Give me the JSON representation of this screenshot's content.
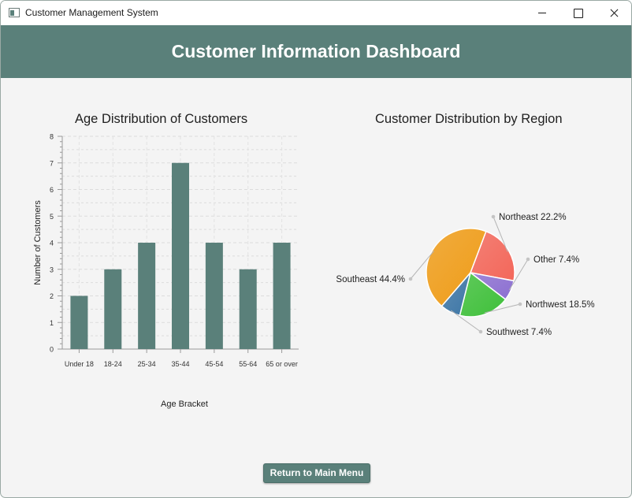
{
  "window": {
    "title": "Customer Management System"
  },
  "header": {
    "title": "Customer Information Dashboard"
  },
  "footer": {
    "return_button_label": "Return to Main Menu"
  },
  "colors": {
    "accent": "#5a807a",
    "background": "#f4f4f4",
    "pie_northeast": "#f3675a",
    "pie_other": "#8c6fd1",
    "pie_northwest": "#3fc03a",
    "pie_southwest": "#3d76a6",
    "pie_southeast": "#ef9c17"
  },
  "chart_data": [
    {
      "type": "bar",
      "title": "Age Distribution of Customers",
      "xlabel": "Age Bracket",
      "ylabel": "Number of Customers",
      "categories": [
        "Under 18",
        "18-24",
        "25-34",
        "35-44",
        "45-54",
        "55-64",
        "65 or over"
      ],
      "values": [
        2,
        3,
        4,
        7,
        4,
        3,
        4
      ],
      "ylim": [
        0,
        8
      ],
      "yticks": [
        "0",
        "1",
        "2",
        "3",
        "4",
        "5",
        "6",
        "7",
        "8"
      ],
      "grid": true
    },
    {
      "type": "pie",
      "title": "Customer Distribution by Region",
      "slices": [
        {
          "name": "Northeast",
          "value": 22.2,
          "label": "Northeast 22.2%"
        },
        {
          "name": "Other",
          "value": 7.4,
          "label": "Other 7.4%"
        },
        {
          "name": "Northwest",
          "value": 18.5,
          "label": "Northwest 18.5%"
        },
        {
          "name": "Southwest",
          "value": 7.4,
          "label": "Southwest 7.4%"
        },
        {
          "name": "Southeast",
          "value": 44.4,
          "label": "Southeast 44.4%"
        }
      ]
    }
  ]
}
